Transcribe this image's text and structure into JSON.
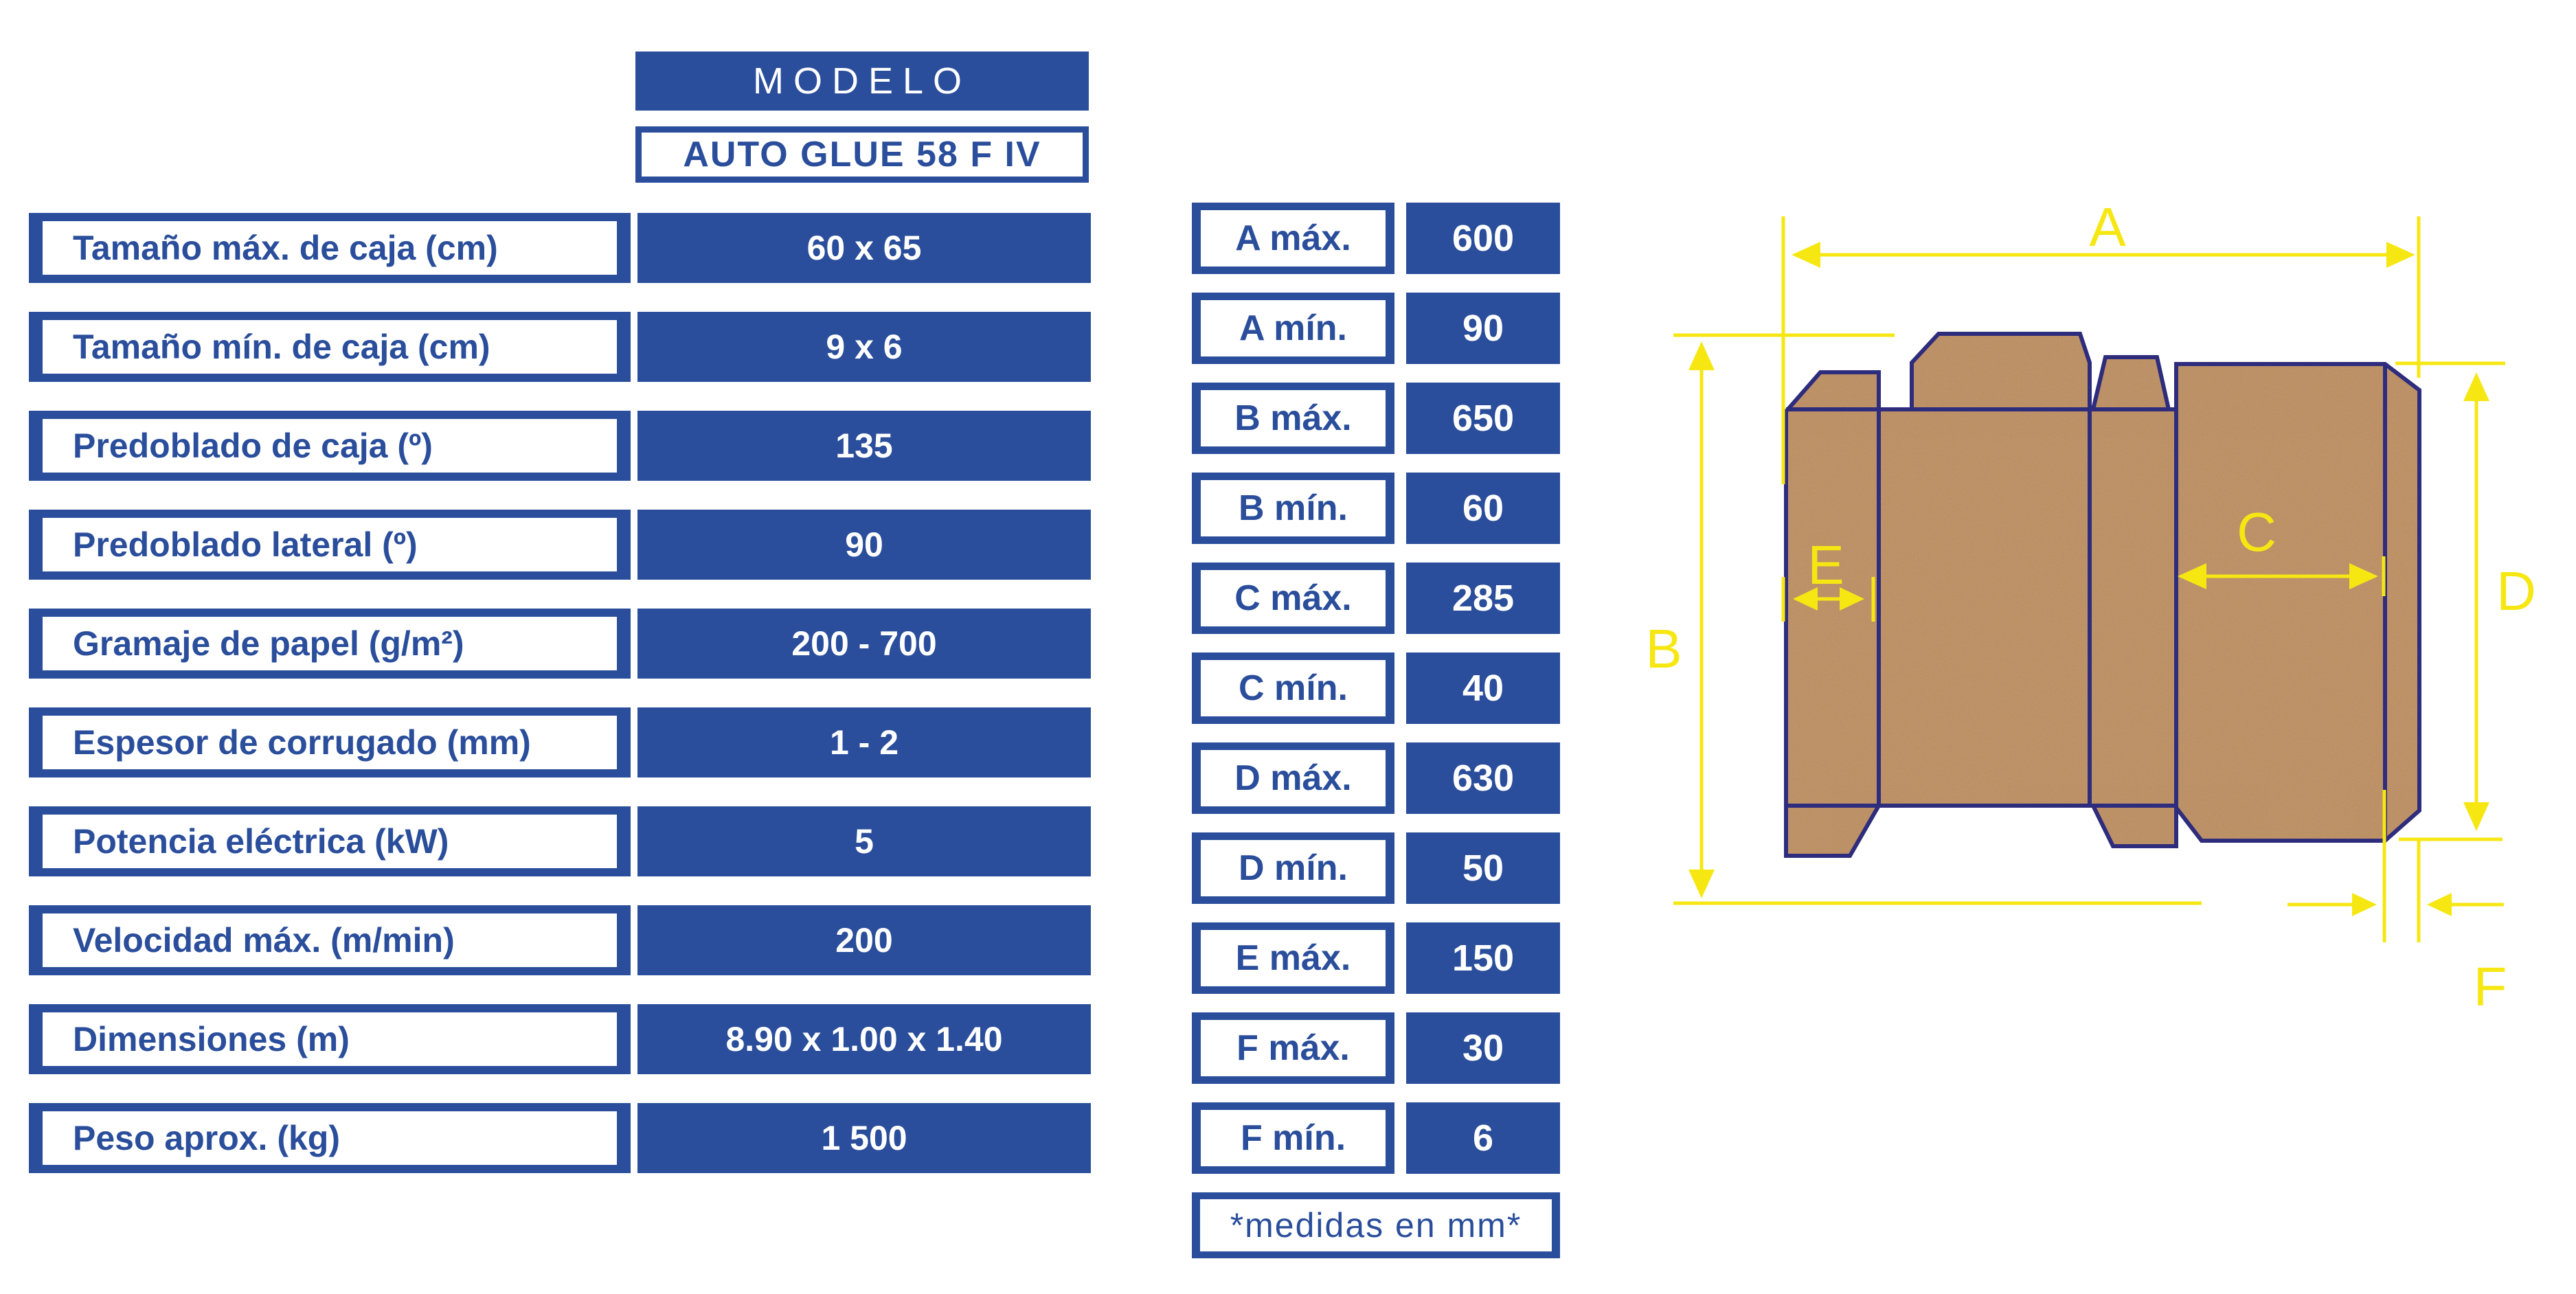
{
  "header": {
    "modelo_label": "MODELO",
    "model_name": "AUTO GLUE 58 F IV"
  },
  "spec_table": {
    "rows": [
      {
        "label": "Tamaño máx. de caja (cm)",
        "value": "60 x 65"
      },
      {
        "label": "Tamaño mín. de caja (cm)",
        "value": "9 x 6"
      },
      {
        "label": "Predoblado de caja (º)",
        "value": "135"
      },
      {
        "label": "Predoblado lateral (º)",
        "value": "90"
      },
      {
        "label": "Gramaje de papel (g/m²)",
        "value": "200 - 700"
      },
      {
        "label": "Espesor de corrugado (mm)",
        "value": "1 - 2"
      },
      {
        "label": "Potencia eléctrica (kW)",
        "value": "5"
      },
      {
        "label": "Velocidad máx. (m/min)",
        "value": "200"
      },
      {
        "label": "Dimensiones (m)",
        "value": "8.90 x 1.00 x 1.40"
      },
      {
        "label": "Peso aprox. (kg)",
        "value": "1 500"
      }
    ]
  },
  "dims_table": {
    "rows": [
      {
        "label": "A máx.",
        "value": "600"
      },
      {
        "label": "A mín.",
        "value": "90"
      },
      {
        "label": "B máx.",
        "value": "650"
      },
      {
        "label": "B mín.",
        "value": "60"
      },
      {
        "label": "C máx.",
        "value": "285"
      },
      {
        "label": "C mín.",
        "value": "40"
      },
      {
        "label": "D máx.",
        "value": "630"
      },
      {
        "label": "D mín.",
        "value": "50"
      },
      {
        "label": "E máx.",
        "value": "150"
      },
      {
        "label": "F máx.",
        "value": "30"
      },
      {
        "label": "F mín.",
        "value": "6"
      }
    ],
    "footnote": "*medidas en mm*"
  },
  "diagram": {
    "dim_labels": [
      "A",
      "B",
      "C",
      "D",
      "E",
      "F"
    ]
  },
  "colors": {
    "blue": "#2A4E9B",
    "navy_outline": "#2E2C7C",
    "yellow": "#F6E713",
    "kraft_brown": "#BD8E60"
  }
}
